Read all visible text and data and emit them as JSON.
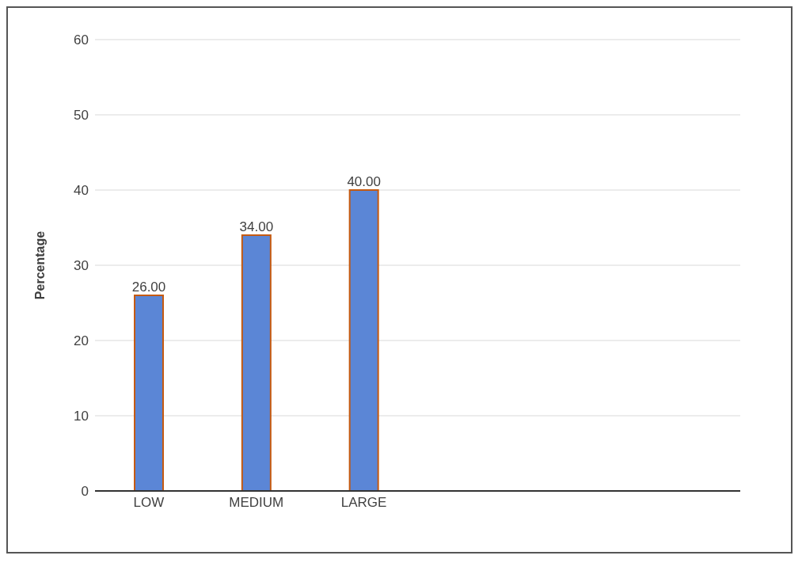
{
  "chart_data": {
    "type": "bar",
    "ylabel": "Percentage",
    "categories": [
      "LOW",
      "MEDIUM",
      "LARGE",
      null,
      null,
      null
    ],
    "values": [
      26,
      34,
      40,
      null,
      null,
      null
    ],
    "color": "#5b86d6",
    "ylim": [
      0,
      60
    ],
    "yticks": [
      0,
      10,
      20,
      30,
      40,
      50,
      60
    ],
    "grid": "y",
    "value_labels": [
      "26.00",
      "34.00",
      "40.00",
      null,
      null,
      null
    ]
  }
}
